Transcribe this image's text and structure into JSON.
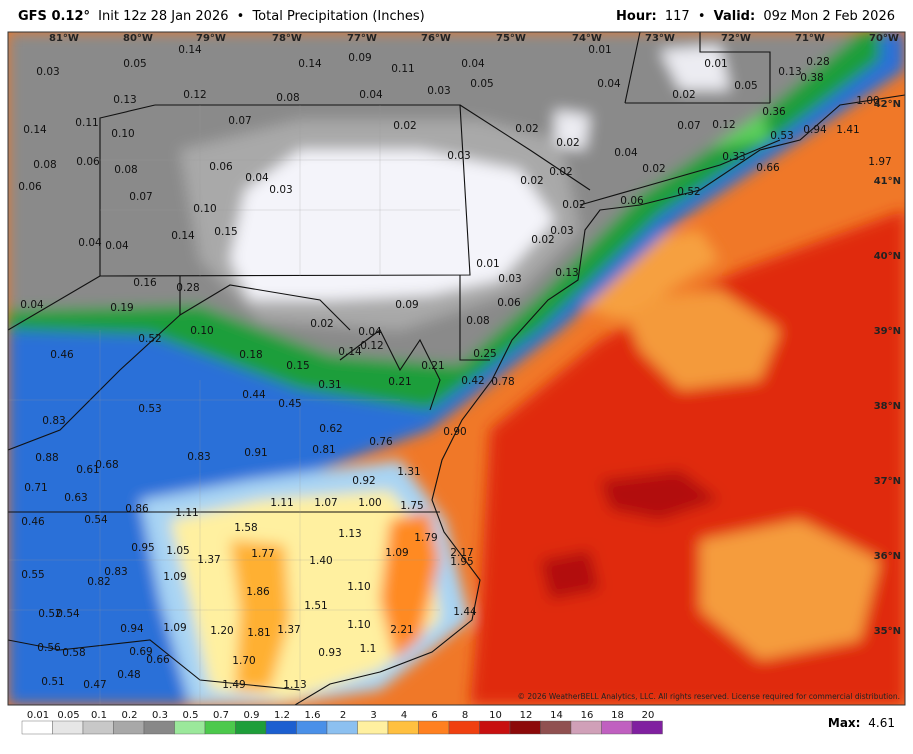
{
  "header": {
    "model": "GFS 0.12°",
    "init": "Init 12z 28 Jan 2026",
    "separator": "•",
    "product": "Total Precipitation (Inches)",
    "hour_label": "Hour:",
    "hour": "117",
    "valid_label": "Valid:",
    "valid": "09z Mon 2 Feb 2026"
  },
  "longitudes": [
    "81°W",
    "80°W",
    "79°W",
    "78°W",
    "77°W",
    "76°W",
    "75°W",
    "74°W",
    "73°W",
    "72°W",
    "71°W",
    "70°W"
  ],
  "latitudes": [
    "42°N",
    "41°N",
    "40°N",
    "39°N",
    "38°N",
    "37°N",
    "36°N",
    "35°N"
  ],
  "points": [
    "0.03",
    "0.05",
    "0.14",
    "0.14",
    "0.09",
    "0.11",
    "0.04",
    "0.05",
    "0.13",
    "0.12",
    "0.08",
    "0.04",
    "0.03",
    "0.01",
    "0.01",
    "0.13",
    "0.28",
    "0.38",
    "0.04",
    "0.02",
    "0.05",
    "1.00",
    "0.14",
    "0.11",
    "0.10",
    "0.07",
    "0.02",
    "0.02",
    "0.07",
    "0.12",
    "0.36",
    "0.53",
    "0.94",
    "1.41",
    "0.08",
    "0.06",
    "0.08",
    "0.06",
    "0.04",
    "0.03",
    "0.03",
    "0.02",
    "0.04",
    "0.02",
    "0.33",
    "0.66",
    "1.97",
    "0.06",
    "0.07",
    "0.10",
    "0.02",
    "0.02",
    "0.02",
    "0.06",
    "0.52",
    "0.04",
    "0.04",
    "0.14",
    "0.15",
    "0.03",
    "0.02",
    "0.01",
    "0.03",
    "0.13",
    "0.16",
    "0.28",
    "0.04",
    "0.19",
    "0.06",
    "0.09",
    "0.02",
    "0.08",
    "0.10",
    "0.52",
    "0.04",
    "0.12",
    "0.14",
    "0.46",
    "0.18",
    "0.15",
    "0.25",
    "0.31",
    "0.21",
    "0.21",
    "0.42",
    "0.78",
    "0.44",
    "0.45",
    "0.53",
    "0.83",
    "0.62",
    "0.76",
    "0.90",
    "0.88",
    "0.61",
    "0.68",
    "0.83",
    "0.91",
    "0.81",
    "1.31",
    "0.92",
    "0.71",
    "0.63",
    "0.86",
    "1.11",
    "1.11",
    "1.07",
    "1.00",
    "1.75",
    "0.46",
    "0.54",
    "1.58",
    "1.13",
    "1.79",
    "0.95",
    "1.05",
    "1.37",
    "1.77",
    "1.40",
    "1.09",
    "2.17",
    "1.95",
    "0.55",
    "0.83",
    "0.82",
    "1.09",
    "1.86",
    "1.10",
    "1.51",
    "0.52",
    "0.54",
    "1.44",
    "0.94",
    "1.09",
    "1.20",
    "1.81",
    "1.37",
    "1.10",
    "2.21",
    "0.56",
    "0.58",
    "0.69",
    "0.66",
    "0.93",
    "1.1",
    "1.70",
    "0.51",
    "0.47",
    "0.48",
    "1.49",
    "1.13"
  ],
  "legend": {
    "labels": [
      "0.01",
      "0.05",
      "0.1",
      "0.2",
      "0.3",
      "0.5",
      "0.7",
      "0.9",
      "1.2",
      "1.6",
      "2",
      "3",
      "4",
      "6",
      "8",
      "10",
      "12",
      "14",
      "16",
      "18",
      "20"
    ],
    "colors": [
      "#ffffff",
      "#e6e6e6",
      "#c8c8c8",
      "#a8a8a8",
      "#888888",
      "#9be89b",
      "#4cc94c",
      "#1e9e3a",
      "#1c5fd0",
      "#4a90e8",
      "#8cc0f0",
      "#fff0a0",
      "#ffc040",
      "#ff8020",
      "#f04010",
      "#c81010",
      "#8c0a0a",
      "#905050",
      "#d0a0b8",
      "#c060c0",
      "#8020a0"
    ]
  },
  "max": {
    "label": "Max:",
    "value": "4.61"
  },
  "copyright": "© 2026 WeatherBELL Analytics, LLC. All rights reserved. License required for commercial distribution."
}
